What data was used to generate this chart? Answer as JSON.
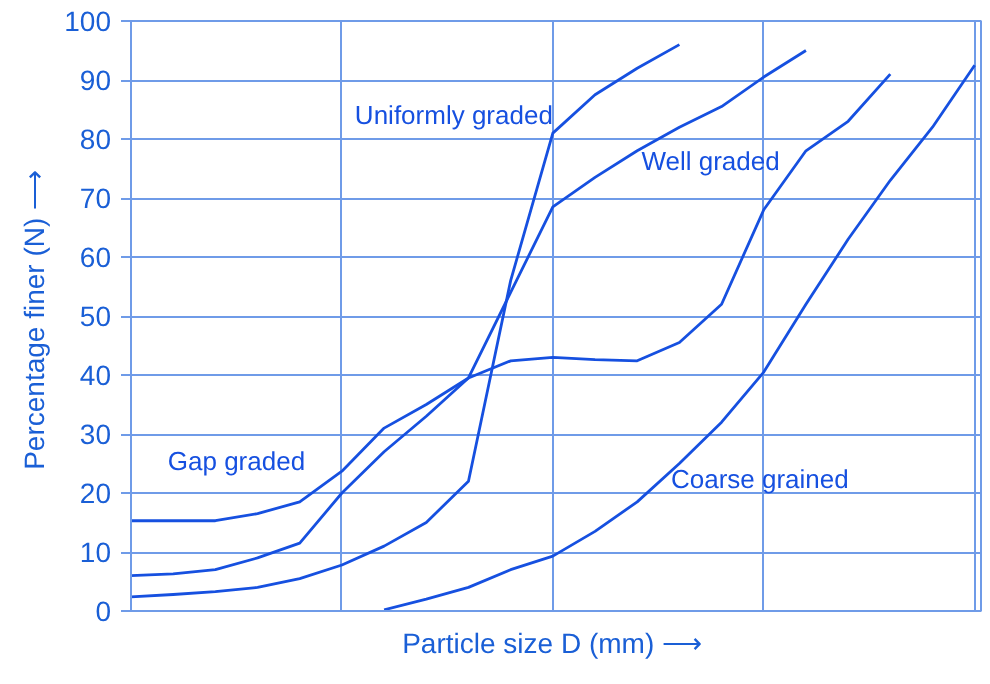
{
  "chart_data": {
    "type": "line",
    "xlabel": "Particle size D (mm)  ⟶",
    "ylabel": "Percentage finer (N)  ⟶",
    "categories": [
      null,
      null,
      null,
      null,
      null,
      null,
      null,
      null,
      null,
      null,
      null,
      null,
      null,
      null,
      null,
      null,
      null,
      null,
      null,
      null,
      null
    ],
    "ylim": [
      0,
      100
    ],
    "yticks": [
      0,
      10,
      20,
      30,
      40,
      50,
      60,
      70,
      80,
      90,
      100
    ],
    "grid": true,
    "tick_labels": "y",
    "line_style": "solid",
    "series": [
      {
        "name": "Uniformly graded",
        "color": "#1650e0",
        "values": [
          2.4,
          2.8,
          3.3,
          4,
          5.5,
          7.8,
          11,
          15,
          22,
          56,
          81,
          87.5,
          92,
          96,
          null,
          null,
          null,
          null,
          null,
          null,
          null
        ]
      },
      {
        "name": "Well graded",
        "color": "#1650e0",
        "values": [
          6,
          6.3,
          7,
          9,
          11.5,
          20,
          27,
          33,
          39.5,
          54,
          68.5,
          73.5,
          78,
          82,
          85.5,
          90.5,
          95,
          null,
          null,
          null,
          null
        ]
      },
      {
        "name": "Gap graded",
        "color": "#1650e0",
        "values": [
          15.3,
          15.3,
          15.3,
          16.5,
          18.5,
          23.7,
          31,
          35,
          39.5,
          42.4,
          43,
          42.6,
          42.4,
          45.5,
          52,
          68,
          78,
          83,
          91,
          null,
          null
        ]
      },
      {
        "name": "Coarse grained",
        "color": "#1650e0",
        "values": [
          null,
          null,
          null,
          null,
          null,
          null,
          0.2,
          2,
          4,
          7,
          9.3,
          13.5,
          18.5,
          25,
          32,
          40.5,
          52,
          63,
          73,
          82,
          92.5
        ]
      }
    ]
  }
}
